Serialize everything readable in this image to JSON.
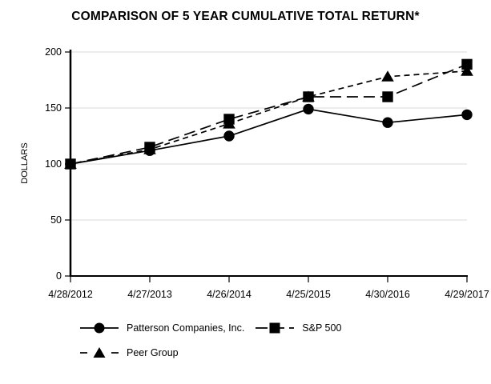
{
  "page": {
    "title": "COMPARISON OF 5 YEAR CUMULATIVE TOTAL RETURN*"
  },
  "chart_data": {
    "type": "line",
    "title": "COMPARISON OF 5 YEAR CUMULATIVE TOTAL RETURN*",
    "xlabel": "",
    "ylabel": "DOLLARS",
    "ylim": [
      0,
      200
    ],
    "yticks": [
      0,
      50,
      100,
      150,
      200
    ],
    "grid": true,
    "legend_position": "bottom-left",
    "categories": [
      "4/28/2012",
      "4/27/2013",
      "4/26/2014",
      "4/25/2015",
      "4/30/2016",
      "4/29/2017"
    ],
    "series": [
      {
        "name": "Patterson Companies, Inc.",
        "marker": "circle",
        "line_style": "solid",
        "values": [
          100,
          112,
          125,
          149,
          137,
          144
        ]
      },
      {
        "name": "S&P 500",
        "marker": "square",
        "line_style": "long-dash",
        "values": [
          100,
          115,
          140,
          160,
          160,
          189
        ]
      },
      {
        "name": "Peer Group",
        "marker": "triangle",
        "line_style": "short-dash",
        "values": [
          100,
          113,
          136,
          160,
          178,
          183
        ]
      }
    ],
    "colors": {
      "series": "#000000",
      "gridline": "#d9d9d9",
      "background": "#ffffff",
      "text": "#000000"
    }
  }
}
